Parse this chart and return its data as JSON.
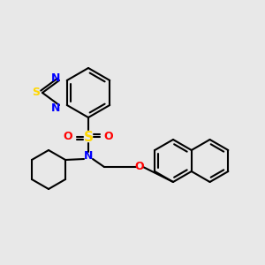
{
  "bg_color": "#e8e8e8",
  "bond_color": "#000000",
  "bond_width": 1.5,
  "atom_colors": {
    "N": "#0000FF",
    "S_thiadiazole": "#FFD700",
    "S_sulfonyl": "#FFD700",
    "O": "#FF0000",
    "C": "#000000"
  },
  "font_size": 9
}
